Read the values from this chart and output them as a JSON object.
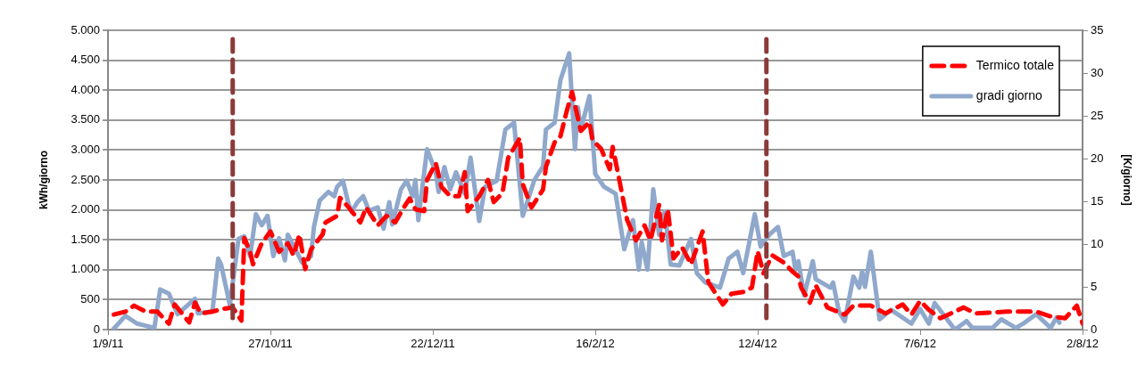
{
  "chart_data": {
    "type": "line",
    "ylabel": "kWh/giorno",
    "y2label": "[K/giorno]",
    "xlim": [
      "2011-09-01",
      "2012-08-02"
    ],
    "xticks": [
      {
        "value": "2011-09-01",
        "label": "1/9/11"
      },
      {
        "value": "2011-10-27",
        "label": "27/10/11"
      },
      {
        "value": "2011-12-22",
        "label": "22/12/11"
      },
      {
        "value": "2012-02-16",
        "label": "16/2/12"
      },
      {
        "value": "2012-04-12",
        "label": "12/4/12"
      },
      {
        "value": "2012-06-07",
        "label": "7/6/12"
      },
      {
        "value": "2012-08-02",
        "label": "2/8/12"
      }
    ],
    "ylim": [
      0,
      5000
    ],
    "yticks": [
      0,
      500,
      {
        "value": 1000,
        "label": "1.000"
      },
      {
        "value": 1500,
        "label": "1.500"
      },
      {
        "value": 2000,
        "label": "2.000"
      },
      {
        "value": 2500,
        "label": "2.500"
      },
      {
        "value": 3000,
        "label": "3.000"
      },
      {
        "value": 3500,
        "label": "3.500"
      },
      {
        "value": 4000,
        "label": "4.000"
      },
      {
        "value": 4500,
        "label": "4.500"
      },
      {
        "value": 5000,
        "label": "5.000"
      }
    ],
    "y2lim": [
      0,
      35
    ],
    "y2ticks": [
      0,
      5,
      10,
      15,
      20,
      25,
      30,
      35
    ],
    "grid": "y",
    "legend": "top right",
    "ref_lines": [
      {
        "axis": "x",
        "value": "2011-10-14",
        "color": "#8b3a3a",
        "line_style": "dashed"
      },
      {
        "axis": "x",
        "value": "2012-04-15",
        "color": "#8b3a3a",
        "line_style": "dashed"
      }
    ],
    "series": [
      {
        "name": "Termico totale",
        "color": "#ff0000",
        "line_style": "dashed",
        "x": [
          "2011-09-03",
          "2011-09-07",
          "2011-09-10",
          "2011-09-14",
          "2011-09-18",
          "2011-09-22",
          "2011-09-24",
          "2011-09-29",
          "2011-10-01",
          "2011-10-03",
          "2011-10-07",
          "2011-10-10",
          "2011-10-14",
          "2011-10-17",
          "2011-10-18",
          "2011-10-20",
          "2011-10-21",
          "2011-10-24",
          "2011-10-27",
          "2011-10-30",
          "2011-11-02",
          "2011-11-04",
          "2011-11-06",
          "2011-11-08",
          "2011-11-10",
          "2011-11-14",
          "2011-11-15",
          "2011-11-19",
          "2011-11-20",
          "2011-11-23",
          "2011-11-27",
          "2011-11-29",
          "2011-12-03",
          "2011-12-06",
          "2011-12-09",
          "2011-12-12",
          "2011-12-14",
          "2011-12-16",
          "2011-12-19",
          "2011-12-20",
          "2011-12-23",
          "2011-12-25",
          "2011-12-28",
          "2011-12-31",
          "2012-01-02",
          "2012-01-03",
          "2012-01-07",
          "2012-01-10",
          "2012-01-12",
          "2012-01-15",
          "2012-01-17",
          "2012-01-21",
          "2012-01-22",
          "2012-01-25",
          "2012-01-29",
          "2012-01-30",
          "2012-02-02",
          "2012-02-04",
          "2012-02-06",
          "2012-02-08",
          "2012-02-11",
          "2012-02-14",
          "2012-02-15",
          "2012-02-18",
          "2012-02-21",
          "2012-02-22",
          "2012-02-24",
          "2012-02-27",
          "2012-03-01",
          "2012-03-04",
          "2012-03-06",
          "2012-03-09",
          "2012-03-10",
          "2012-03-12",
          "2012-03-14",
          "2012-03-17",
          "2012-03-20",
          "2012-03-24",
          "2012-03-26",
          "2012-03-31",
          "2012-04-03",
          "2012-04-07",
          "2012-04-10",
          "2012-04-12",
          "2012-04-14",
          "2012-04-17",
          "2012-04-21",
          "2012-04-24",
          "2012-04-26",
          "2012-04-27",
          "2012-04-30",
          "2012-05-02",
          "2012-05-06",
          "2012-05-12",
          "2012-05-15",
          "2012-05-21",
          "2012-05-26",
          "2012-06-01",
          "2012-06-04",
          "2012-06-07",
          "2012-06-10",
          "2012-06-14",
          "2012-06-22",
          "2012-06-26",
          "2012-07-07",
          "2012-07-17",
          "2012-07-22",
          "2012-07-27",
          "2012-07-31",
          "2012-08-02"
        ],
        "values": [
          250,
          300,
          400,
          300,
          300,
          100,
          420,
          120,
          450,
          270,
          300,
          340,
          370,
          150,
          1530,
          1300,
          1090,
          1440,
          1640,
          1300,
          1440,
          1240,
          1590,
          1010,
          1340,
          1590,
          1790,
          1900,
          2200,
          2040,
          1790,
          2040,
          1740,
          1900,
          1790,
          2040,
          2190,
          2010,
          1980,
          2500,
          2780,
          2380,
          2230,
          2230,
          2630,
          1980,
          2230,
          2500,
          2130,
          2280,
          2870,
          3200,
          2430,
          2040,
          2340,
          2720,
          3130,
          3230,
          3620,
          3970,
          3320,
          3470,
          3170,
          3020,
          2680,
          3050,
          2570,
          1830,
          1490,
          1740,
          1490,
          2080,
          1490,
          2010,
          1190,
          1370,
          1090,
          1640,
          790,
          420,
          600,
          630,
          700,
          1310,
          940,
          1240,
          1120,
          970,
          890,
          700,
          450,
          740,
          370,
          250,
          400,
          400,
          270,
          420,
          250,
          480,
          330,
          190,
          370,
          270,
          300,
          300,
          220,
          190,
          400,
          100
        ]
      },
      {
        "name": "gradi giorno",
        "color": "#8fa8cc",
        "line_style": "solid",
        "axis": "y2",
        "x": [
          "2011-09-03",
          "2011-09-07",
          "2011-09-11",
          "2011-09-17",
          "2011-09-19",
          "2011-09-22",
          "2011-09-25",
          "2011-10-01",
          "2011-10-02",
          "2011-10-07",
          "2011-10-09",
          "2011-10-10",
          "2011-10-13",
          "2011-10-16",
          "2011-10-18",
          "2011-10-20",
          "2011-10-22",
          "2011-10-24",
          "2011-10-26",
          "2011-10-28",
          "2011-10-30",
          "2011-11-01",
          "2011-11-02",
          "2011-11-07",
          "2011-11-10",
          "2011-11-11",
          "2011-11-13",
          "2011-11-16",
          "2011-11-18",
          "2011-11-19",
          "2011-11-21",
          "2011-11-23",
          "2011-11-24",
          "2011-11-26",
          "2011-11-28",
          "2011-11-30",
          "2011-12-03",
          "2011-12-05",
          "2011-12-07",
          "2011-12-08",
          "2011-12-11",
          "2011-12-13",
          "2011-12-15",
          "2011-12-16",
          "2011-12-17",
          "2011-12-20",
          "2011-12-23",
          "2011-12-24",
          "2011-12-26",
          "2011-12-28",
          "2011-12-30",
          "2012-01-02",
          "2012-01-04",
          "2012-01-07",
          "2012-01-09",
          "2012-01-13",
          "2012-01-16",
          "2012-01-19",
          "2012-01-22",
          "2012-01-26",
          "2012-01-29",
          "2012-01-30",
          "2012-02-02",
          "2012-02-04",
          "2012-02-07",
          "2012-02-09",
          "2012-02-10",
          "2012-02-11",
          "2012-02-14",
          "2012-02-16",
          "2012-02-19",
          "2012-02-23",
          "2012-02-26",
          "2012-02-29",
          "2012-03-02",
          "2012-03-03",
          "2012-03-05",
          "2012-03-07",
          "2012-03-09",
          "2012-03-11",
          "2012-03-13",
          "2012-03-16",
          "2012-03-20",
          "2012-03-22",
          "2012-03-25",
          "2012-03-30",
          "2012-04-02",
          "2012-04-05",
          "2012-04-07",
          "2012-04-11",
          "2012-04-13",
          "2012-04-16",
          "2012-04-19",
          "2012-04-21",
          "2012-04-24",
          "2012-04-25",
          "2012-04-26",
          "2012-04-28",
          "2012-05-01",
          "2012-05-02",
          "2012-05-07",
          "2012-05-08",
          "2012-05-10",
          "2012-05-12",
          "2012-05-15",
          "2012-05-17",
          "2012-05-18",
          "2012-05-19",
          "2012-05-21",
          "2012-05-24",
          "2012-05-28",
          "2012-06-04",
          "2012-06-07",
          "2012-06-10",
          "2012-06-12",
          "2012-06-19",
          "2012-06-23",
          "2012-06-25",
          "2012-07-02",
          "2012-07-05",
          "2012-07-10",
          "2012-07-13",
          "2012-07-17",
          "2012-07-22",
          "2012-07-24",
          "2012-07-25"
        ],
        "values": [
          0.1,
          1.6,
          0.7,
          0.2,
          4.7,
          4.2,
          1.8,
          3.6,
          1.9,
          2.1,
          8.3,
          7.6,
          2.9,
          10.6,
          10.9,
          8.6,
          13.5,
          12.2,
          13.3,
          8.6,
          10.7,
          8.1,
          11.1,
          7.8,
          8.6,
          12.0,
          15.1,
          16.1,
          15.6,
          16.7,
          17.4,
          14.6,
          13.8,
          14.9,
          15.6,
          13.9,
          14.3,
          11.8,
          14.9,
          12.3,
          16.4,
          17.4,
          15.6,
          17.5,
          12.8,
          21.1,
          18.4,
          16.1,
          19.0,
          16.4,
          18.4,
          15.9,
          20.1,
          12.7,
          16.7,
          17.4,
          23.4,
          24.2,
          13.3,
          17.5,
          19.1,
          23.4,
          24.2,
          29.2,
          32.3,
          21.1,
          26.0,
          23.4,
          27.3,
          18.2,
          16.7,
          15.9,
          9.4,
          12.8,
          7.0,
          10.2,
          7.0,
          16.4,
          11.1,
          13.8,
          7.6,
          7.5,
          10.6,
          6.6,
          5.5,
          4.9,
          8.3,
          9.1,
          6.6,
          13.5,
          9.7,
          11.1,
          12.0,
          8.6,
          9.1,
          7.0,
          8.0,
          4.0,
          8.0,
          5.9,
          4.9,
          5.5,
          2.1,
          1.0,
          6.2,
          4.9,
          6.8,
          5.0,
          9.1,
          1.2,
          2.3,
          0.7,
          2.4,
          0.7,
          3.1,
          0.0,
          1.0,
          0.2,
          0.2,
          1.2,
          0.2,
          0.8,
          1.8,
          0.2,
          1.4,
          0.8
        ]
      }
    ]
  }
}
